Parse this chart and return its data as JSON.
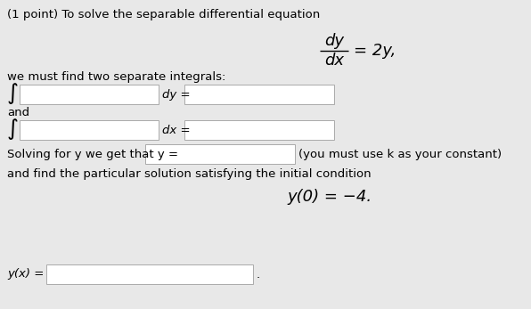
{
  "bg_color": "#e8e8e8",
  "box_color": "#ffffff",
  "box_edge_color": "#aaaaaa",
  "title_text": "(1 point) To solve the separable differential equation",
  "ode_dy": "dy",
  "ode_dx": "dx",
  "ode_rhs": "= 2y,",
  "integral_text": "we must find two separate integrals:",
  "integral_symbol": "∫",
  "dy_label": "dy =",
  "dx_label": "dx =",
  "and_text": "and",
  "solving_prefix": "Solving for y we get that y =",
  "constant_text": "(you must use k as your constant)",
  "particular_text": "and find the particular solution satisfying the initial condition",
  "ic_text": "y(0) = −4.",
  "yx_label": "y(x) =",
  "period": ".",
  "font_size_main": 9.5,
  "font_size_math_large": 13,
  "font_size_integral": 18
}
